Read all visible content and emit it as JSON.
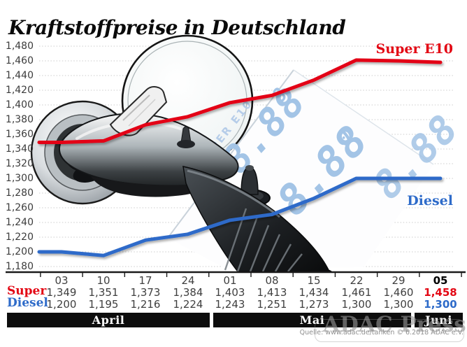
{
  "title": "Kraftstoffpreise in Deutschland",
  "source": "Quelle: www.adac.de/tanken   © 6.2018 ADAC e.V.",
  "watermark": "ADAC Presse",
  "colors": {
    "super_red": "#e30613",
    "diesel_blue": "#2e6bc9",
    "grid": "#cccccc",
    "axis": "#1a1a1a",
    "table_text": "#3f3f3f",
    "month_band_bg": "#0d0d0d",
    "lcd_digits": "#a3c4e6",
    "lcd_labels": "#b6cde9"
  },
  "lcd_display": {
    "row1_label": "SUPER E10",
    "row1_digits": "8.88",
    "row1_sup": "8",
    "row2_label": "DIESEL",
    "row2_digits": "8.88",
    "row2_sup": "0",
    "row3_digits": "8.88"
  },
  "chart_data": {
    "type": "line",
    "x_tick_labels": [
      "03",
      "10",
      "17",
      "24",
      "01",
      "08",
      "15",
      "22",
      "29",
      "05"
    ],
    "ylim": [
      1.18,
      1.48
    ],
    "ytick_step": 0.02,
    "ytick_labels": [
      "1,480",
      "1,460",
      "1,440",
      "1,420",
      "1,400",
      "1,380",
      "1,360",
      "1,340",
      "1,320",
      "1,300",
      "1,280",
      "1,260",
      "1,240",
      "1,220",
      "1,200",
      "1,180"
    ],
    "grid": "dotted horizontal lines",
    "legend_position": "labels at right end of lines",
    "series": [
      {
        "name": "Super E10",
        "color": "#e30613",
        "values": [
          1.349,
          1.351,
          1.373,
          1.384,
          1.403,
          1.413,
          1.434,
          1.461,
          1.46,
          1.458
        ]
      },
      {
        "name": "Diesel",
        "color": "#2e6bc9",
        "values": [
          1.2,
          1.195,
          1.216,
          1.224,
          1.243,
          1.251,
          1.273,
          1.3,
          1.3,
          1.3
        ]
      }
    ],
    "months": [
      {
        "label": "April",
        "span": 4
      },
      {
        "label": "Mai",
        "span": 5
      },
      {
        "label": "Juni",
        "span": 1
      }
    ]
  },
  "table": {
    "date_row": [
      "03",
      "10",
      "17",
      "24",
      "01",
      "08",
      "15",
      "22",
      "29",
      "05"
    ],
    "rows": [
      {
        "label": "Super",
        "color": "#e30613",
        "values": [
          "1,349",
          "1,351",
          "1,373",
          "1,384",
          "1,403",
          "1,413",
          "1,434",
          "1,461",
          "1,460",
          "1,458"
        ]
      },
      {
        "label": "Diesel",
        "color": "#2e6bc9",
        "values": [
          "1,200",
          "1,195",
          "1,216",
          "1,224",
          "1,243",
          "1,251",
          "1,273",
          "1,300",
          "1,300",
          "1,300"
        ]
      }
    ]
  }
}
